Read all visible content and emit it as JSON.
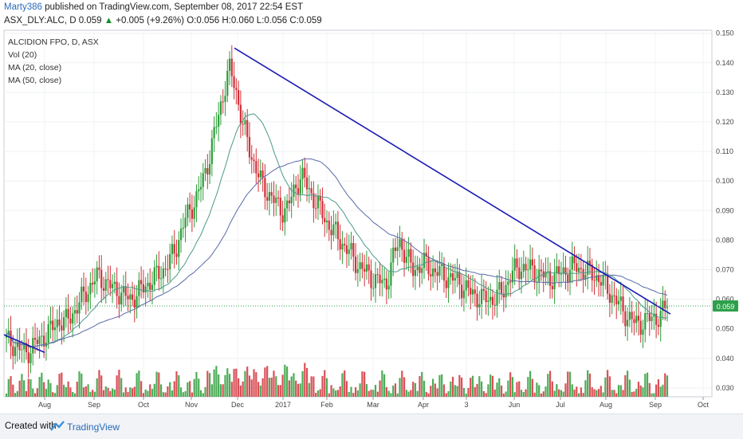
{
  "header": {
    "user": "Marty386",
    "published": "published on TradingView.com, September 08, 2017 22:54 EST",
    "symbol": "ASX_DLY:ALC, D",
    "last": "0.059",
    "arrow": "▲",
    "change": "+0.005 (+9.26%)",
    "ohlc": "O:0.056 H:0.060 L:0.056 C:0.059"
  },
  "legend": {
    "title": "ALCIDION FPO, D, ASX",
    "vol": "Vol (20)",
    "ma20": "MA (20, close)",
    "ma50": "MA (50, close)"
  },
  "price_tag": "0.059",
  "footer": {
    "created": "Created with",
    "brand": "TradingView"
  },
  "colors": {
    "up": "#2e9e3a",
    "down": "#d2313a",
    "trend": "#1a1ab4",
    "ma": "#5a6aa8",
    "tag": "#2ea04b"
  },
  "chart_data": {
    "type": "candlestick",
    "ylim": [
      0.027,
      0.151
    ],
    "y_ticks": [
      "0.150",
      "0.140",
      "0.130",
      "0.120",
      "0.110",
      "0.100",
      "0.090",
      "0.080",
      "0.070",
      "0.060",
      "0.050",
      "0.040",
      "0.030"
    ],
    "x_ticks": [
      "Aug",
      "Sep",
      "Oct",
      "Nov",
      "Dec",
      "2017",
      "Feb",
      "Mar",
      "Apr",
      "3",
      "Jun",
      "Jul",
      "Aug",
      "Sep",
      "Oct"
    ],
    "closes": [
      0.046,
      0.045,
      0.043,
      0.042,
      0.044,
      0.046,
      0.048,
      0.05,
      0.053,
      0.052,
      0.055,
      0.058,
      0.062,
      0.065,
      0.068,
      0.066,
      0.064,
      0.063,
      0.061,
      0.06,
      0.062,
      0.064,
      0.066,
      0.068,
      0.07,
      0.073,
      0.078,
      0.085,
      0.09,
      0.094,
      0.1,
      0.108,
      0.118,
      0.128,
      0.138,
      0.132,
      0.12,
      0.112,
      0.105,
      0.099,
      0.096,
      0.093,
      0.09,
      0.091,
      0.097,
      0.102,
      0.098,
      0.094,
      0.09,
      0.086,
      0.083,
      0.08,
      0.077,
      0.074,
      0.071,
      0.069,
      0.067,
      0.066,
      0.065,
      0.073,
      0.08,
      0.075,
      0.07,
      0.071,
      0.072,
      0.07,
      0.069,
      0.068,
      0.067,
      0.066,
      0.064,
      0.062,
      0.061,
      0.06,
      0.06,
      0.061,
      0.063,
      0.068,
      0.07,
      0.071,
      0.07,
      0.069,
      0.068,
      0.067,
      0.068,
      0.069,
      0.07,
      0.071,
      0.07,
      0.069,
      0.068,
      0.066,
      0.063,
      0.06,
      0.057,
      0.054,
      0.052,
      0.052,
      0.053,
      0.054,
      0.054,
      0.059
    ],
    "trendlines": [
      {
        "from": [
          "2016-07-20",
          0.048
        ],
        "to": [
          "2016-08-12",
          0.042
        ]
      },
      {
        "from": [
          "2016-11-29",
          0.145
        ],
        "to": [
          "2017-09-08",
          0.055
        ]
      }
    ]
  }
}
